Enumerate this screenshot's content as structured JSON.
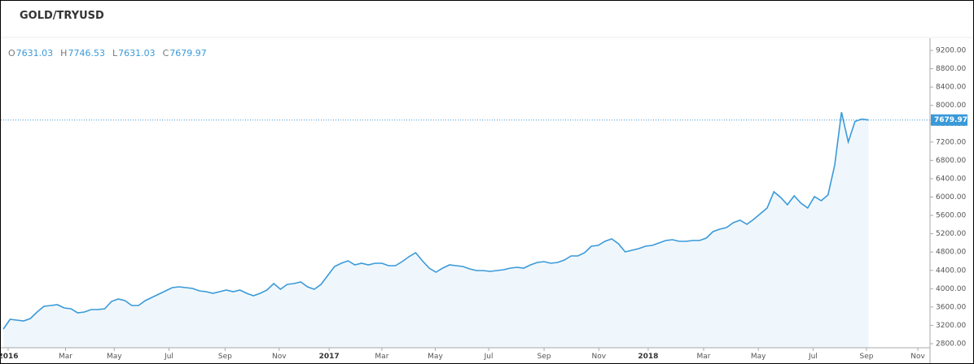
{
  "chart_data": {
    "type": "area",
    "title": "GOLD/TRYUSD",
    "ohlc": [
      {
        "key": "O",
        "value": 7631.03
      },
      {
        "key": "H",
        "value": 7746.53
      },
      {
        "key": "L",
        "value": 7631.03
      },
      {
        "key": "C",
        "value": 7679.97
      }
    ],
    "last_price": {
      "value": 7679.97,
      "label": "7679.97"
    },
    "color": "#3a9ad9",
    "values": [
      3119,
      3332,
      3314,
      3296,
      3350,
      3491,
      3616,
      3633,
      3651,
      3580,
      3562,
      3474,
      3491,
      3545,
      3545,
      3562,
      3722,
      3775,
      3740,
      3633,
      3633,
      3740,
      3811,
      3882,
      3952,
      4023,
      4041,
      4023,
      4006,
      3952,
      3935,
      3899,
      3935,
      3970,
      3935,
      3970,
      3899,
      3846,
      3899,
      3970,
      4112,
      3988,
      4094,
      4112,
      4147,
      4041,
      3988,
      4094,
      4289,
      4484,
      4555,
      4608,
      4520,
      4555,
      4520,
      4555,
      4555,
      4502,
      4502,
      4591,
      4697,
      4786,
      4608,
      4449,
      4360,
      4449,
      4520,
      4502,
      4484,
      4431,
      4396,
      4396,
      4378,
      4396,
      4413,
      4449,
      4467,
      4449,
      4520,
      4573,
      4591,
      4555,
      4573,
      4626,
      4715,
      4715,
      4786,
      4928,
      4945,
      5034,
      5087,
      4981,
      4803,
      4839,
      4874,
      4928,
      4945,
      4999,
      5052,
      5070,
      5034,
      5034,
      5052,
      5052,
      5105,
      5247,
      5300,
      5335,
      5442,
      5495,
      5406,
      5513,
      5637,
      5761,
      6116,
      5991,
      5832,
      6027,
      5867,
      5761,
      6009,
      5920,
      6045,
      6700,
      7850,
      7200,
      7650,
      7700,
      7679.97
    ],
    "xlim": [
      -0.5,
      137.1
    ],
    "xticks": [
      {
        "value": 0.7,
        "label": "2016"
      },
      {
        "value": 9.2,
        "label": "Mar"
      },
      {
        "value": 16.4,
        "label": "May"
      },
      {
        "value": 24.5,
        "label": "Jul"
      },
      {
        "value": 32.8,
        "label": "Sep"
      },
      {
        "value": 40.8,
        "label": "Nov"
      },
      {
        "value": 48.2,
        "label": "2017"
      },
      {
        "value": 56,
        "label": "Mar"
      },
      {
        "value": 63.9,
        "label": "May"
      },
      {
        "value": 71.8,
        "label": "Jul"
      },
      {
        "value": 80,
        "label": "Sep"
      },
      {
        "value": 88.1,
        "label": "Nov"
      },
      {
        "value": 95.4,
        "label": "2018"
      },
      {
        "value": 103.6,
        "label": "Mar"
      },
      {
        "value": 111.7,
        "label": "May"
      },
      {
        "value": 119.8,
        "label": "Jul"
      },
      {
        "value": 127.7,
        "label": "Sep"
      },
      {
        "value": 135.3,
        "label": "Nov"
      }
    ],
    "ylim": [
      2800,
      9200
    ],
    "yticks": [
      {
        "value": 2800,
        "label": "2800.00"
      },
      {
        "value": 3200,
        "label": "3200.00"
      },
      {
        "value": 3600,
        "label": "3600.00"
      },
      {
        "value": 4000,
        "label": "4000.00"
      },
      {
        "value": 4400,
        "label": "4400.00"
      },
      {
        "value": 4800,
        "label": "4800.00"
      },
      {
        "value": 5200,
        "label": "5200.00"
      },
      {
        "value": 5600,
        "label": "5600.00"
      },
      {
        "value": 6000,
        "label": "6000.00"
      },
      {
        "value": 6400,
        "label": "6400.00"
      },
      {
        "value": 6800,
        "label": "6800.00"
      },
      {
        "value": 7200,
        "label": "7200.00"
      },
      {
        "value": 7600,
        "label": "7600.00"
      },
      {
        "value": 8000,
        "label": "8000.00"
      },
      {
        "value": 8400,
        "label": "8400.00"
      },
      {
        "value": 8800,
        "label": "8800.00"
      },
      {
        "value": 9200,
        "label": "9200.00"
      }
    ]
  }
}
